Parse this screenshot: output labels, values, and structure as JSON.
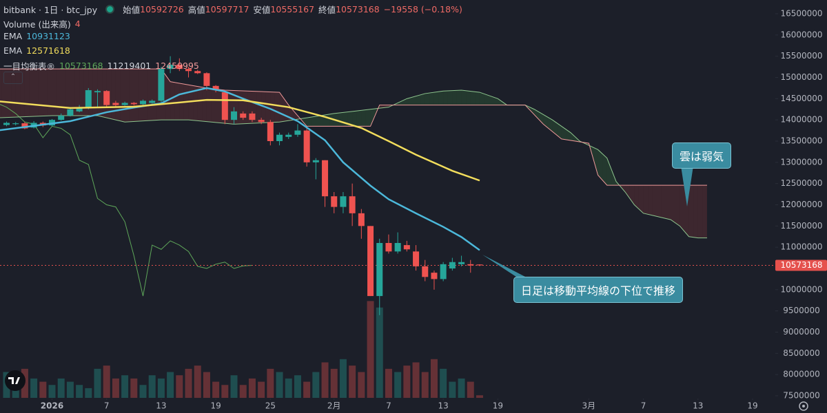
{
  "header": {
    "symbol": "bitbank · 1日 · btc_jpy",
    "open_label": "始値",
    "high_label": "高値",
    "low_label": "安値",
    "close_label": "終値",
    "change": "−19558 (−0.18%)"
  },
  "legend": {
    "volume_label": "Volume (出来高)",
    "ichimoku_label": "一目均衡表®"
  },
  "chart_data": {
    "type": "candlestick",
    "x": [
      0,
      1,
      2,
      3,
      4,
      5,
      6,
      7,
      8,
      9,
      10,
      11,
      12,
      13,
      14,
      15,
      16,
      17,
      18,
      19,
      20,
      21,
      22,
      23,
      24,
      25,
      26,
      27,
      28,
      29,
      30,
      31,
      32,
      33,
      34,
      35,
      36,
      37,
      38,
      39,
      40,
      41,
      42,
      43,
      44,
      45,
      46,
      47,
      48,
      49,
      50,
      51,
      52
    ],
    "open": [
      13880000,
      13900000,
      13920000,
      13820000,
      13930000,
      13870000,
      14000000,
      14100000,
      14200000,
      14300000,
      14650000,
      14680000,
      14400000,
      14350000,
      14400000,
      14370000,
      14400000,
      14450000,
      15200000,
      15300000,
      15200000,
      15150000,
      15100000,
      14800000,
      14650000,
      14000000,
      14150000,
      14150000,
      14000000,
      13950000,
      13500000,
      13600000,
      13650000,
      13750000,
      13000000,
      13050000,
      12200000,
      11950000,
      12200000,
      11800000,
      11500000,
      9850000,
      11100000,
      10900000,
      11050000,
      10900000,
      10550000,
      10400000,
      10250000,
      10500000,
      10600000,
      10600000,
      10592726
    ],
    "high": [
      13960000,
      13950000,
      13950000,
      13970000,
      13960000,
      14020000,
      14150000,
      14300000,
      14350000,
      14750000,
      14720000,
      14700000,
      14450000,
      14430000,
      14420000,
      14480000,
      14480000,
      15250000,
      15500000,
      15450000,
      15250000,
      15180000,
      15120000,
      14820000,
      14700000,
      14300000,
      14200000,
      14200000,
      14050000,
      14000000,
      13700000,
      13700000,
      13900000,
      13800000,
      13100000,
      13050000,
      12300000,
      12300000,
      12500000,
      11900000,
      11500000,
      11200000,
      11300000,
      11350000,
      11150000,
      11050000,
      10700000,
      10450000,
      10650000,
      10750000,
      10800000,
      10700000,
      10597717
    ],
    "low": [
      13850000,
      13870000,
      13780000,
      13800000,
      13830000,
      13850000,
      13980000,
      14080000,
      14180000,
      14250000,
      14300000,
      14300000,
      14320000,
      14330000,
      14340000,
      14350000,
      14380000,
      14400000,
      15100000,
      15150000,
      15000000,
      15080000,
      14700000,
      14650000,
      13900000,
      13900000,
      14000000,
      13950000,
      13900000,
      13400000,
      13400000,
      13550000,
      13600000,
      12900000,
      12600000,
      11950000,
      11800000,
      11800000,
      11500000,
      11200000,
      9850000,
      9400000,
      10850000,
      10850000,
      10900000,
      10450000,
      10200000,
      10000000,
      10200000,
      10450000,
      10550000,
      10400000,
      10555167
    ],
    "close": [
      13930000,
      13920000,
      13800000,
      13930000,
      13870000,
      14000000,
      14100000,
      14250000,
      14300000,
      14700000,
      14680000,
      14350000,
      14350000,
      14400000,
      14370000,
      14450000,
      14450000,
      15200000,
      15300000,
      15200000,
      15150000,
      15100000,
      14800000,
      14700000,
      14000000,
      14200000,
      14050000,
      14000000,
      13950000,
      13500000,
      13650000,
      13650000,
      13750000,
      13000000,
      13050000,
      12200000,
      11950000,
      12200000,
      11800000,
      11500000,
      9850000,
      11100000,
      10900000,
      11100000,
      10950000,
      10550000,
      10300000,
      10250000,
      10600000,
      10650000,
      10650000,
      10570000,
      10573168
    ],
    "volume": [
      40,
      30,
      45,
      30,
      25,
      20,
      30,
      25,
      20,
      15,
      45,
      50,
      30,
      35,
      30,
      20,
      35,
      30,
      40,
      35,
      45,
      50,
      40,
      25,
      20,
      35,
      20,
      30,
      25,
      45,
      40,
      30,
      35,
      25,
      40,
      55,
      45,
      60,
      50,
      40,
      150,
      140,
      45,
      40,
      50,
      55,
      40,
      60,
      45,
      25,
      30,
      25,
      4
    ],
    "vlim": [
      0,
      160
    ],
    "up_color": "#26a69a",
    "down_color": "#ef5350",
    "ema": [
      {
        "name": "EMA",
        "color": "#4cb8da",
        "x": [
          -1,
          7,
          11,
          14,
          17,
          19,
          22,
          24,
          26,
          29,
          32,
          35,
          37,
          40,
          42,
          45,
          48,
          50,
          52
        ],
        "values": [
          13750000,
          13970000,
          14180000,
          14290000,
          14390000,
          14600000,
          14750000,
          14670000,
          14500000,
          14260000,
          13970000,
          13520000,
          13000000,
          12450000,
          12130000,
          11800000,
          11480000,
          11240000,
          10931123
        ]
      },
      {
        "name": "EMA",
        "color": "#f2dd5c",
        "x": [
          -1,
          7,
          14,
          22,
          26,
          31,
          35,
          39,
          42,
          45,
          49,
          52
        ],
        "values": [
          14440000,
          14280000,
          14310000,
          14470000,
          14460000,
          14300000,
          14070000,
          13810000,
          13500000,
          13180000,
          12800000,
          12571618
        ]
      }
    ],
    "ichimoku": {
      "lagging": {
        "color": "#5fa85a",
        "x": [
          -1,
          0,
          1,
          2,
          3,
          4,
          5,
          6,
          7,
          8,
          9,
          10,
          11,
          12,
          13,
          14,
          15,
          16,
          17,
          18,
          19,
          20,
          21,
          22,
          23,
          24,
          25,
          26,
          27
        ],
        "values": [
          14390000,
          14300000,
          14150000,
          13950000,
          13900000,
          13580000,
          13850000,
          13800000,
          13650000,
          13050000,
          12950000,
          12150000,
          12000000,
          11950000,
          11600000,
          10800000,
          9850000,
          11050000,
          10950000,
          11150000,
          11050000,
          10900000,
          10550000,
          10500000,
          10600000,
          10650000,
          10500000,
          10560000,
          10573168
        ]
      },
      "span_a": {
        "color": "#8fc78f",
        "x": [
          -1,
          5,
          10,
          13,
          17,
          20,
          25,
          30,
          33,
          36,
          40,
          42,
          44,
          46,
          48,
          50,
          52,
          54,
          55,
          57,
          58,
          60,
          62,
          63,
          65,
          66,
          67,
          68,
          69,
          70,
          71,
          72,
          73,
          74,
          75,
          76,
          77
        ],
        "values": [
          14050000,
          14100000,
          14100000,
          13950000,
          14000000,
          14000000,
          13900000,
          13950000,
          14050000,
          14150000,
          14250000,
          14300000,
          14500000,
          14620000,
          14680000,
          14700000,
          14650000,
          14500000,
          14350000,
          14350000,
          14250000,
          14000000,
          13700000,
          13500000,
          13300000,
          13100000,
          12550000,
          12300000,
          12000000,
          11800000,
          11750000,
          11700000,
          11650000,
          11500000,
          11250000,
          11220000,
          11219401
        ]
      },
      "span_b": {
        "color": "#f09a9a",
        "x": [
          -1,
          17,
          18,
          22,
          24,
          30,
          31,
          33,
          40,
          41,
          57,
          59,
          61,
          64,
          65,
          66,
          77
        ],
        "values": [
          15200000,
          15200000,
          14900000,
          14750000,
          14700000,
          14650000,
          14350000,
          13850000,
          13850000,
          14350000,
          14350000,
          13900000,
          13550000,
          13450000,
          12700000,
          12459995,
          12459995
        ]
      },
      "cloud_up_color": "rgba(76,175,80,0.18)",
      "cloud_down_color": "rgba(239,83,80,0.16)"
    },
    "last_price": 10573168,
    "last_price_color": "#e5514d",
    "xlim": [
      0,
      82
    ],
    "ylim": [
      7500000,
      16500000
    ],
    "yticks": [
      7500000,
      8000000,
      8500000,
      9000000,
      9500000,
      10000000,
      10500000,
      11000000,
      11500000,
      12000000,
      12500000,
      13000000,
      13500000,
      14000000,
      14500000,
      15000000,
      15500000,
      16000000,
      16500000
    ],
    "xticks": [
      {
        "value": 5,
        "label": "2026"
      },
      {
        "value": 11,
        "label": "7"
      },
      {
        "value": 17,
        "label": "13"
      },
      {
        "value": 23,
        "label": "19"
      },
      {
        "value": 29,
        "label": "25"
      },
      {
        "value": 36,
        "label": "2月"
      },
      {
        "value": 42,
        "label": "7"
      },
      {
        "value": 48,
        "label": "13"
      },
      {
        "value": 54,
        "label": "19"
      },
      {
        "value": 64,
        "label": "3月"
      },
      {
        "value": 70,
        "label": "7"
      },
      {
        "value": 76,
        "label": "13"
      },
      {
        "value": 82,
        "label": "19"
      }
    ],
    "grid": false,
    "annotations": [
      "雲は弱気",
      "日足は移動平均線の下位で推移"
    ]
  }
}
